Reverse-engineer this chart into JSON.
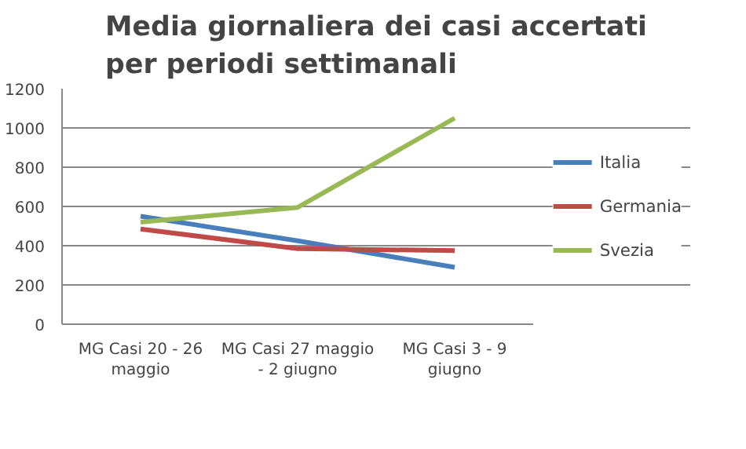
{
  "chart_data": {
    "type": "line",
    "title": "Media giornaliera dei casi accertati per periodi settimanali",
    "categories": [
      "MG Casi 20 - 26 maggio",
      "MG Casi 27 maggio - 2 giugno",
      "MG Casi 3 - 9 giugno"
    ],
    "series": [
      {
        "name": "Italia",
        "color": "#4a7ebb",
        "values": [
          550,
          425,
          290
        ]
      },
      {
        "name": "Germania",
        "color": "#be4b48",
        "values": [
          485,
          385,
          375
        ]
      },
      {
        "name": "Svezia",
        "color": "#98b954",
        "values": [
          520,
          595,
          1050
        ]
      }
    ],
    "ylim": [
      0,
      1200
    ],
    "yticks": [
      0,
      200,
      400,
      600,
      800,
      1000,
      1200
    ],
    "grid": "y",
    "legend": "right",
    "marker": "none",
    "line_style": "solid"
  }
}
